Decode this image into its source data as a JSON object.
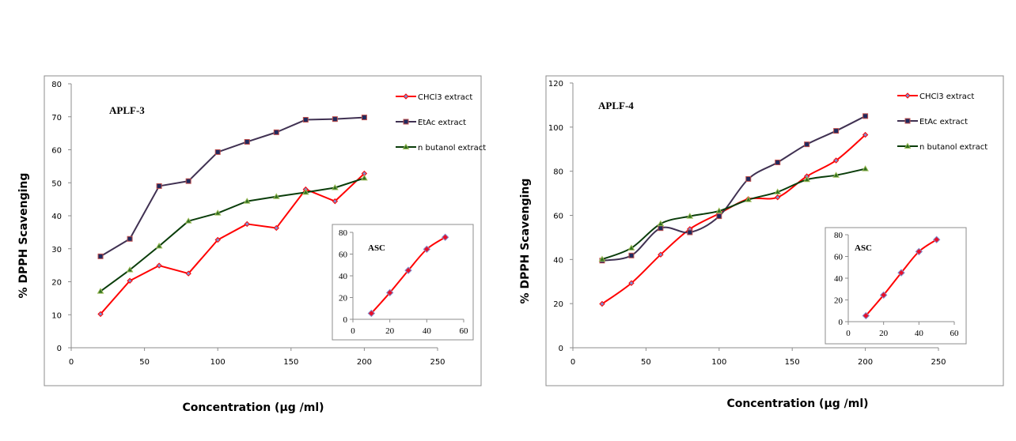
{
  "chart_data": [
    {
      "type": "line",
      "title": "APLF-3",
      "xlabel": "Concentration (µg /ml)",
      "ylabel": "% DPPH Scavenging",
      "xlim": [
        0,
        250
      ],
      "ylim": [
        0,
        80
      ],
      "xticks": [
        0,
        50,
        100,
        150,
        200,
        250
      ],
      "yticks": [
        0,
        10,
        20,
        30,
        40,
        50,
        60,
        70,
        80
      ],
      "grid": false,
      "legend": "top-right",
      "x": [
        20,
        40,
        60,
        80,
        100,
        120,
        140,
        160,
        180,
        200
      ],
      "smooth": false,
      "series": [
        {
          "name": "CHCl3 extract",
          "color": "#ff0000",
          "marker": "diamond",
          "values": [
            10.2,
            20.3,
            24.9,
            22.5,
            32.7,
            37.5,
            36.3,
            48.0,
            44.4,
            52.8
          ]
        },
        {
          "name": "EtAc extract",
          "color": "#403152",
          "marker": "square",
          "values": [
            27.7,
            33.0,
            49.0,
            50.5,
            59.3,
            62.4,
            65.3,
            69.1,
            69.3,
            69.8
          ]
        },
        {
          "name": "n butanol extract",
          "color": "#0a3d0a",
          "marker": "triangle",
          "values": [
            17.1,
            23.6,
            30.8,
            38.4,
            40.8,
            44.4,
            45.8,
            47.1,
            48.5,
            51.4
          ]
        }
      ],
      "inset": {
        "type": "line",
        "title": "ASC",
        "xlim": [
          0,
          60
        ],
        "ylim": [
          0,
          80
        ],
        "xticks": [
          0,
          20,
          40,
          60
        ],
        "yticks": [
          0,
          20,
          40,
          60,
          80
        ],
        "x": [
          10,
          20,
          30,
          40,
          50
        ],
        "values": [
          5.5,
          24.5,
          45.0,
          64.5,
          75.5
        ],
        "color": "#ff0000"
      }
    },
    {
      "type": "line",
      "title": "APLF-4",
      "xlabel": "Concentration (µg /ml)",
      "ylabel": "% DPPH Scavenging",
      "xlim": [
        0,
        250
      ],
      "ylim": [
        0,
        120
      ],
      "xticks": [
        0,
        50,
        100,
        150,
        200,
        250
      ],
      "yticks": [
        0,
        20,
        40,
        60,
        80,
        100,
        120
      ],
      "grid": false,
      "legend": "top-right",
      "x": [
        20,
        40,
        60,
        80,
        100,
        120,
        140,
        160,
        180,
        200
      ],
      "smooth": true,
      "series": [
        {
          "name": "CHCl3 extract",
          "color": "#ff0000",
          "marker": "diamond",
          "values": [
            19.9,
            29.3,
            42.2,
            53.8,
            60.8,
            67.4,
            68.2,
            77.7,
            84.9,
            96.5
          ]
        },
        {
          "name": "EtAc extract",
          "color": "#403152",
          "marker": "square",
          "values": [
            39.5,
            41.8,
            54.2,
            52.3,
            59.6,
            76.5,
            84.0,
            92.2,
            98.3,
            105.0
          ]
        },
        {
          "name": "n butanol extract",
          "color": "#0a3d0a",
          "marker": "triangle",
          "values": [
            40.1,
            45.2,
            56.2,
            59.6,
            62.0,
            67.1,
            70.6,
            76.2,
            78.2,
            81.1
          ]
        }
      ],
      "inset": {
        "type": "line",
        "title": "ASC",
        "xlim": [
          0,
          60
        ],
        "ylim": [
          0,
          80
        ],
        "xticks": [
          0,
          20,
          40,
          60
        ],
        "yticks": [
          0,
          20,
          40,
          60,
          80
        ],
        "x": [
          10,
          20,
          30,
          40,
          50
        ],
        "values": [
          5.5,
          24.5,
          45.0,
          64.5,
          75.5
        ],
        "color": "#ff0000"
      }
    }
  ]
}
